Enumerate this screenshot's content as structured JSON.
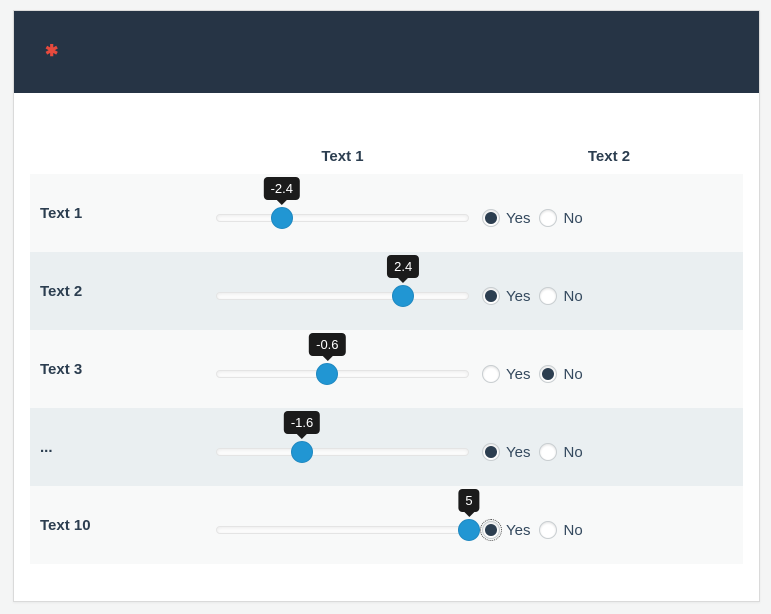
{
  "question": {
    "required_marker": "✱"
  },
  "columns": [
    "Text 1",
    "Text 2"
  ],
  "slider": {
    "min": -5,
    "max": 5
  },
  "radio_options": [
    "Yes",
    "No"
  ],
  "rows": [
    {
      "label": "Text 1",
      "slider_value": -2.4,
      "slider_display": "-2.4",
      "answer": "Yes",
      "focused": false
    },
    {
      "label": "Text 2",
      "slider_value": 2.4,
      "slider_display": "2.4",
      "answer": "Yes",
      "focused": false
    },
    {
      "label": "Text 3",
      "slider_value": -0.6,
      "slider_display": "-0.6",
      "answer": "No",
      "focused": false
    },
    {
      "label": "...",
      "slider_value": -1.6,
      "slider_display": "-1.6",
      "answer": "Yes",
      "focused": false
    },
    {
      "label": "Text 10",
      "slider_value": 5,
      "slider_display": "5",
      "answer": "Yes",
      "focused": true
    }
  ],
  "colors": {
    "page_bg": "#f4f5f5",
    "header_bg": "#263445",
    "required": "#e74a3d",
    "text": "#2c3e50",
    "row_light": "#f8f9f9",
    "row_dark": "#eaeff1",
    "handle": "#2196d3",
    "tooltip": "#1b1b1b"
  }
}
